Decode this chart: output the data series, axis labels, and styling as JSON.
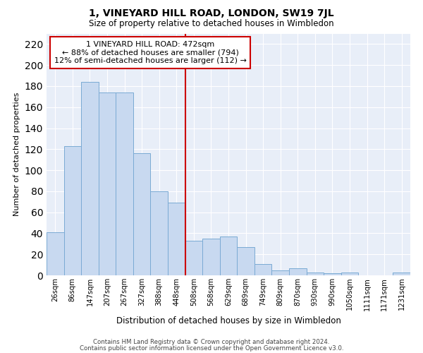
{
  "title": "1, VINEYARD HILL ROAD, LONDON, SW19 7JL",
  "subtitle": "Size of property relative to detached houses in Wimbledon",
  "xlabel": "Distribution of detached houses by size in Wimbledon",
  "ylabel": "Number of detached properties",
  "bar_labels": [
    "26sqm",
    "86sqm",
    "147sqm",
    "207sqm",
    "267sqm",
    "327sqm",
    "388sqm",
    "448sqm",
    "508sqm",
    "568sqm",
    "629sqm",
    "689sqm",
    "749sqm",
    "809sqm",
    "870sqm",
    "930sqm",
    "990sqm",
    "1050sqm",
    "1111sqm",
    "1171sqm",
    "1231sqm"
  ],
  "bar_values": [
    41,
    123,
    184,
    174,
    174,
    116,
    80,
    69,
    33,
    35,
    37,
    27,
    11,
    5,
    7,
    3,
    2,
    3,
    0,
    0,
    3
  ],
  "bar_color": "#c8d9f0",
  "bar_edge_color": "#7aaad4",
  "background_color": "#e8eef8",
  "grid_color": "#ffffff",
  "vline_color": "#cc0000",
  "annotation_line1": "1 VINEYARD HILL ROAD: 472sqm",
  "annotation_line2": "← 88% of detached houses are smaller (794)",
  "annotation_line3": "12% of semi-detached houses are larger (112) →",
  "annotation_box_color": "#cc0000",
  "ylim": [
    0,
    230
  ],
  "yticks": [
    0,
    20,
    40,
    60,
    80,
    100,
    120,
    140,
    160,
    180,
    200,
    220
  ],
  "footer_line1": "Contains HM Land Registry data © Crown copyright and database right 2024.",
  "footer_line2": "Contains public sector information licensed under the Open Government Licence v3.0."
}
